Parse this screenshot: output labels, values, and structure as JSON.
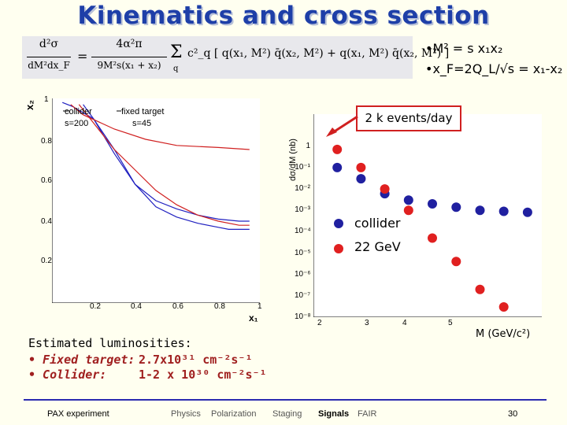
{
  "title": "Kinematics and cross section",
  "formula": {
    "lhs_num": "d²σ",
    "lhs_den": "dM²dx_F",
    "eq": "=",
    "coef_num": "4α²π",
    "coef_den": "9M²s(x₁ + x₂)",
    "sum": "Σ",
    "sum_idx": "q",
    "body": "c²_q [ q(x₁, M²) q̄(x₂, M²) + q(x₁, M²) q̄(x₂, M²) ]"
  },
  "bullets": [
    {
      "text": "•M² = s x₁x₂"
    },
    {
      "text": "•x_F=2Q_L/√s = x₁-x₂"
    }
  ],
  "left_plot": {
    "ylabel": "x₂",
    "xlabel": "x₁",
    "yticks": [
      "1",
      "0.8",
      "0.6",
      "0.4",
      "0.2"
    ],
    "xticks": [
      "0.2",
      "0.4",
      "0.6",
      "0.8",
      "1"
    ],
    "legend": [
      {
        "name": "collider",
        "sub": "s=200",
        "color": "#2020c0"
      },
      {
        "name": "fixed target",
        "sub": "s=45",
        "color": "#d02020"
      }
    ]
  },
  "right_plot": {
    "ylabel": "dσ/dM (nb)",
    "xlabel": "M (GeV/c²)",
    "yticks": [
      "1",
      "10⁻¹",
      "10⁻²",
      "10⁻³",
      "10⁻⁴",
      "10⁻⁵",
      "10⁻⁶",
      "10⁻⁷",
      "10⁻⁸"
    ],
    "xticks": [
      "2",
      "3",
      "4",
      "5"
    ],
    "callout": "2 k events/day",
    "legend": [
      {
        "name": "collider",
        "color": "#2020a0"
      },
      {
        "name": "22 GeV",
        "color": "#e02020"
      }
    ]
  },
  "chart_data": [
    {
      "type": "line",
      "xlabel": "x₁",
      "ylabel": "x₂",
      "xlim": [
        0,
        1
      ],
      "ylim": [
        0,
        1
      ],
      "series": [
        {
          "name": "collider",
          "x": [
            0.15,
            0.2,
            0.3,
            0.4,
            0.5,
            0.6,
            0.7,
            0.8,
            0.85,
            0.9,
            0.95
          ],
          "values": [
            0.97,
            0.9,
            0.73,
            0.58,
            0.47,
            0.42,
            0.39,
            0.37,
            0.36,
            0.36,
            0.36
          ]
        },
        {
          "name": "collider",
          "x": [
            0.05,
            0.1,
            0.2,
            0.3,
            0.4,
            0.5,
            0.6,
            0.7,
            0.8,
            0.9,
            0.95
          ],
          "values": [
            0.98,
            0.96,
            0.9,
            0.75,
            0.58,
            0.5,
            0.46,
            0.43,
            0.41,
            0.4,
            0.4
          ]
        },
        {
          "name": "fixed target",
          "x": [
            0.13,
            0.2,
            0.3,
            0.4,
            0.5,
            0.6,
            0.7,
            0.8,
            0.9,
            0.95
          ],
          "values": [
            0.97,
            0.88,
            0.75,
            0.65,
            0.55,
            0.48,
            0.43,
            0.4,
            0.38,
            0.38
          ]
        },
        {
          "name": "fixed target",
          "x": [
            0.09,
            0.15,
            0.3,
            0.45,
            0.6,
            0.8,
            0.95
          ],
          "values": [
            0.97,
            0.92,
            0.85,
            0.8,
            0.77,
            0.76,
            0.75
          ]
        }
      ]
    },
    {
      "type": "scatter",
      "xlabel": "M (GeV/c²)",
      "ylabel": "dσ/dM (nb)",
      "xlim": [
        1.5,
        6.3
      ],
      "ylim_log10": [
        -8,
        1.5
      ],
      "series": [
        {
          "name": "collider",
          "x": [
            2.0,
            2.5,
            3.0,
            3.5,
            4.0,
            4.5,
            5.0,
            5.5,
            6.0
          ],
          "values": [
            0.1,
            0.03,
            0.006,
            0.003,
            0.002,
            0.0014,
            0.001,
            0.0009,
            0.0008
          ]
        },
        {
          "name": "22 GeV",
          "x": [
            2.0,
            2.5,
            3.0,
            3.5,
            4.0,
            4.5,
            5.0,
            5.5
          ],
          "values": [
            0.7,
            0.1,
            0.01,
            0.001,
            5e-05,
            4e-06,
            2e-07,
            3e-08
          ]
        }
      ]
    }
  ],
  "luminosity": {
    "title": "Estimated luminosities:",
    "rows": [
      {
        "label": "• Fixed target:",
        "value": "2.7x10³¹ cm⁻²s⁻¹"
      },
      {
        "label": "• Collider:",
        "value": "1-2 x 10³⁰ cm⁻²s⁻¹"
      }
    ]
  },
  "footer": {
    "left": "PAX experiment",
    "nav": [
      {
        "label": "Physics",
        "active": false
      },
      {
        "label": "Polarization",
        "active": false
      },
      {
        "label": "Staging",
        "active": false
      },
      {
        "label": "Signals",
        "active": true
      },
      {
        "label": "FAIR",
        "active": false
      }
    ],
    "page": "30"
  }
}
